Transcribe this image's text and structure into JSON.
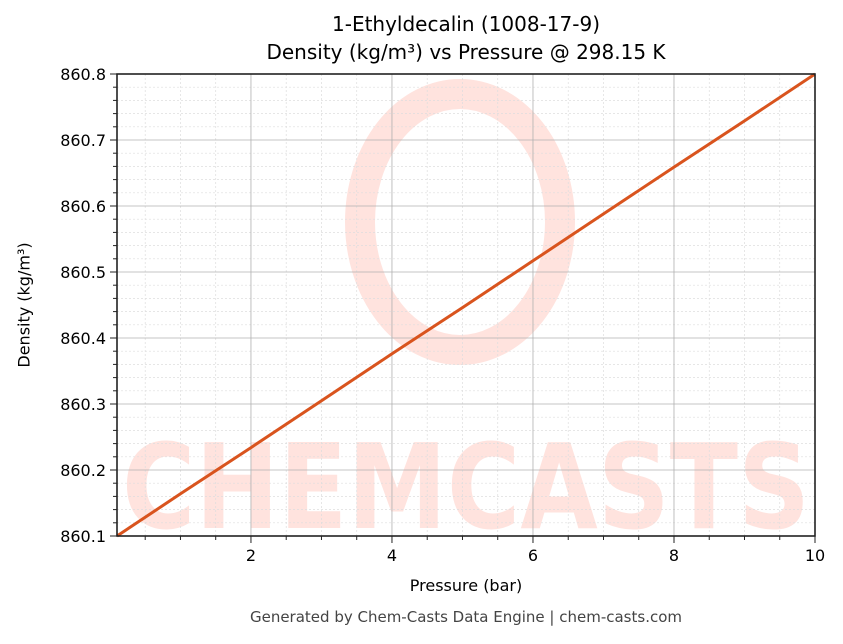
{
  "title": {
    "line1": "1-Ethyldecalin (1008-17-9)",
    "line2": "Density (kg/m³) vs Pressure @ 298.15 K"
  },
  "axes": {
    "xlabel": "Pressure (bar)",
    "ylabel": "Density (kg/m³)",
    "x_ticks": [
      "2",
      "4",
      "6",
      "8",
      "10"
    ],
    "y_ticks": [
      "860.1",
      "860.2",
      "860.3",
      "860.4",
      "860.5",
      "860.6",
      "860.7",
      "860.8"
    ]
  },
  "footer": "Generated by Chem-Casts Data Engine | chem-casts.com",
  "watermark": {
    "text": "CHEMCASTS",
    "color": "#FFE3DE"
  },
  "colors": {
    "line": "#D9541E",
    "major_grid": "#B0B0B0",
    "minor_grid": "#DDDDDD"
  },
  "chart_data": {
    "type": "line",
    "title": "1-Ethyldecalin (1008-17-9) Density (kg/m³) vs Pressure @ 298.15 K",
    "xlabel": "Pressure (bar)",
    "ylabel": "Density (kg/m³)",
    "xlim": [
      0.1,
      10
    ],
    "ylim": [
      860.1,
      860.8
    ],
    "grid": true,
    "legend": null,
    "series": [
      {
        "name": "Density",
        "color": "#D9541E",
        "x": [
          0.1,
          1,
          2,
          3,
          4,
          5,
          6,
          7,
          8,
          9,
          10
        ],
        "y": [
          860.1,
          860.164,
          860.234,
          860.305,
          860.376,
          860.446,
          860.517,
          860.588,
          860.659,
          860.729,
          860.8
        ]
      }
    ]
  }
}
